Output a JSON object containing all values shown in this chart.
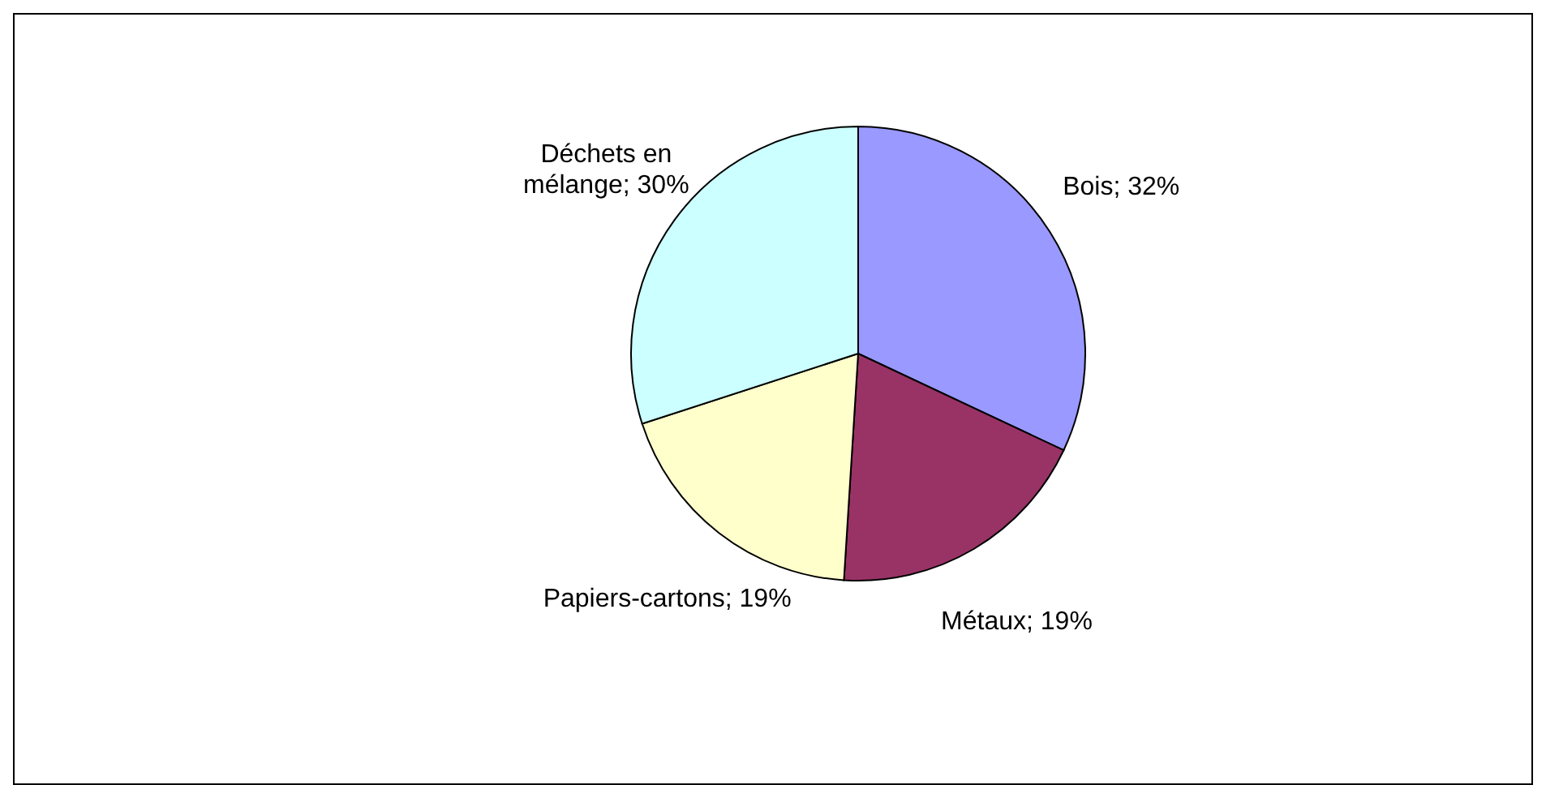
{
  "chart_data": {
    "type": "pie",
    "categories": [
      "Bois",
      "Métaux",
      "Papiers-cartons",
      "Déchets en mélange"
    ],
    "values": [
      32,
      19,
      19,
      30
    ],
    "value_labels": [
      "32%",
      "19%",
      "19%",
      "30%"
    ],
    "colors": [
      "#9999ff",
      "#993366",
      "#ffffcc",
      "#ccffff"
    ],
    "legend": false
  }
}
